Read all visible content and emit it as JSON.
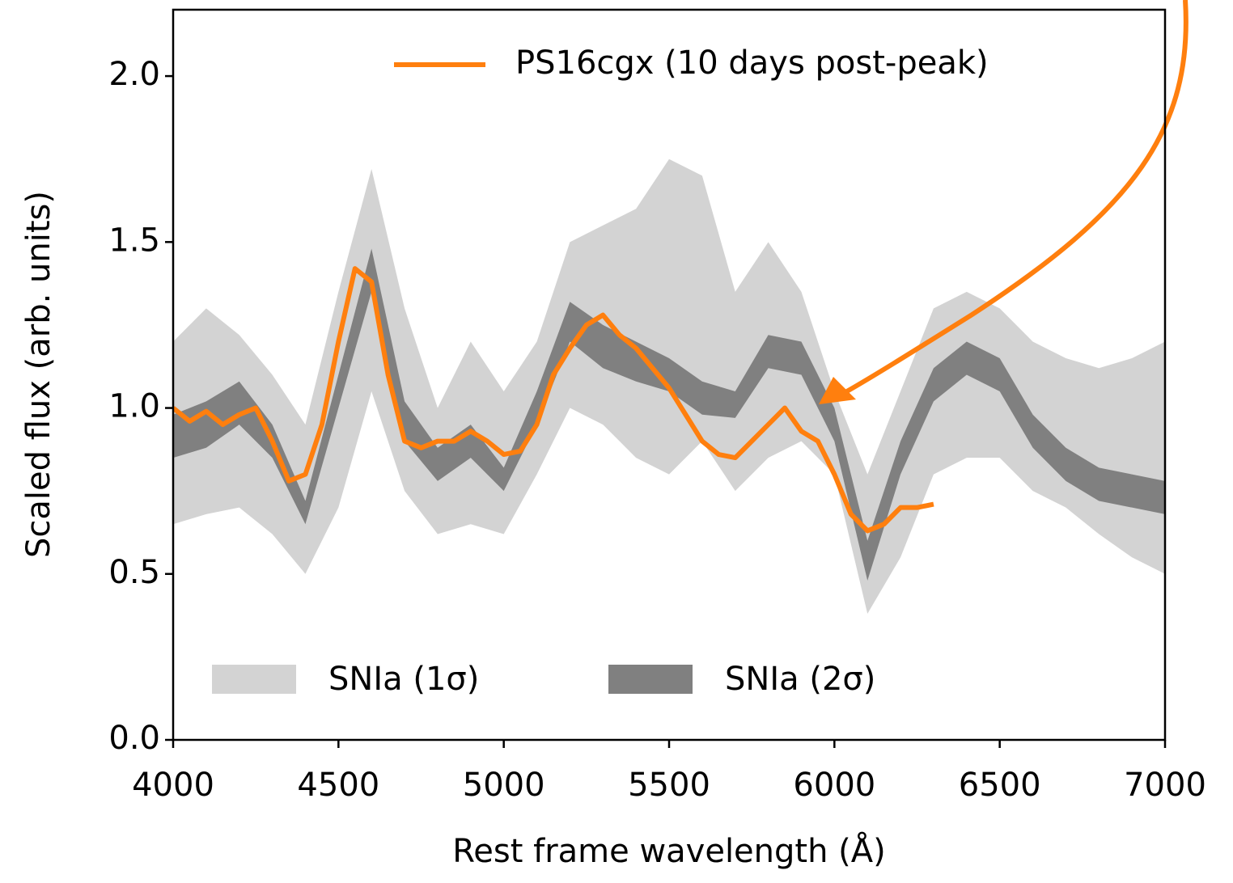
{
  "chart_data": {
    "type": "line",
    "xlabel": "Rest frame wavelength (Å)",
    "ylabel": "Scaled flux (arb. units)",
    "xlim": [
      4000,
      7000
    ],
    "ylim": [
      0,
      2.2
    ],
    "xticks": [
      4000,
      4500,
      5000,
      5500,
      6000,
      6500,
      7000
    ],
    "yticks": [
      {
        "value": 0,
        "label": "0.0"
      },
      {
        "value": 0.5,
        "label": "0.5"
      },
      {
        "value": 1,
        "label": "1.0"
      },
      {
        "value": 1.5,
        "label": "1.5"
      },
      {
        "value": 2,
        "label": "2.0"
      }
    ],
    "bands": [
      {
        "name": "SNIa (1σ)",
        "color": "#d3d3d3",
        "x": [
          4000,
          4100,
          4200,
          4300,
          4400,
          4500,
          4600,
          4700,
          4800,
          4900,
          5000,
          5100,
          5200,
          5300,
          5400,
          5500,
          5600,
          5700,
          5800,
          5900,
          6000,
          6100,
          6200,
          6300,
          6400,
          6500,
          6600,
          6700,
          6800,
          6900,
          7000
        ],
        "upper": [
          1.2,
          1.3,
          1.22,
          1.1,
          0.95,
          1.35,
          1.72,
          1.3,
          1.0,
          1.2,
          1.05,
          1.2,
          1.5,
          1.55,
          1.6,
          1.75,
          1.7,
          1.35,
          1.5,
          1.35,
          1.05,
          0.8,
          1.05,
          1.3,
          1.35,
          1.3,
          1.2,
          1.15,
          1.12,
          1.15,
          1.2
        ],
        "lower": [
          0.65,
          0.68,
          0.7,
          0.62,
          0.5,
          0.7,
          1.05,
          0.75,
          0.62,
          0.65,
          0.62,
          0.8,
          1.0,
          0.95,
          0.85,
          0.8,
          0.9,
          0.75,
          0.85,
          0.9,
          0.8,
          0.38,
          0.55,
          0.8,
          0.85,
          0.85,
          0.75,
          0.7,
          0.62,
          0.55,
          0.5
        ]
      },
      {
        "name": "SNIa (2σ)",
        "color": "#808080",
        "x": [
          4000,
          4100,
          4200,
          4300,
          4400,
          4500,
          4600,
          4700,
          4800,
          4900,
          5000,
          5100,
          5200,
          5300,
          5400,
          5500,
          5600,
          5700,
          5800,
          5900,
          6000,
          6100,
          6200,
          6300,
          6400,
          6500,
          6600,
          6700,
          6800,
          6900,
          7000
        ],
        "upper": [
          0.98,
          1.02,
          1.08,
          0.95,
          0.72,
          1.1,
          1.48,
          1.02,
          0.88,
          0.95,
          0.82,
          1.05,
          1.32,
          1.25,
          1.2,
          1.15,
          1.08,
          1.05,
          1.22,
          1.2,
          1.0,
          0.6,
          0.9,
          1.12,
          1.2,
          1.15,
          0.98,
          0.88,
          0.82,
          0.8,
          0.78
        ],
        "lower": [
          0.85,
          0.88,
          0.95,
          0.85,
          0.65,
          1.0,
          1.35,
          0.9,
          0.78,
          0.85,
          0.75,
          0.95,
          1.2,
          1.12,
          1.08,
          1.05,
          0.98,
          0.97,
          1.12,
          1.1,
          0.9,
          0.48,
          0.8,
          1.02,
          1.1,
          1.05,
          0.88,
          0.78,
          0.72,
          0.7,
          0.68
        ]
      }
    ],
    "series": [
      {
        "name": "PS16cgx (10 days post-peak)",
        "color": "#ff7f0e",
        "x": [
          4000,
          4050,
          4100,
          4150,
          4200,
          4250,
          4300,
          4350,
          4400,
          4450,
          4500,
          4550,
          4600,
          4650,
          4700,
          4750,
          4800,
          4850,
          4900,
          4950,
          5000,
          5050,
          5100,
          5150,
          5200,
          5250,
          5300,
          5350,
          5400,
          5450,
          5500,
          5550,
          5600,
          5650,
          5700,
          5750,
          5800,
          5850,
          5900,
          5950,
          6000,
          6050,
          6100,
          6150,
          6200,
          6250,
          6300
        ],
        "values": [
          1.0,
          0.96,
          0.99,
          0.95,
          0.98,
          1.0,
          0.9,
          0.78,
          0.8,
          0.95,
          1.2,
          1.42,
          1.38,
          1.1,
          0.9,
          0.88,
          0.9,
          0.9,
          0.93,
          0.9,
          0.86,
          0.87,
          0.95,
          1.1,
          1.18,
          1.25,
          1.28,
          1.22,
          1.18,
          1.12,
          1.06,
          0.98,
          0.9,
          0.86,
          0.85,
          0.9,
          0.95,
          1.0,
          0.93,
          0.9,
          0.8,
          0.68,
          0.63,
          0.65,
          0.7,
          0.7,
          0.71
        ]
      }
    ]
  }
}
